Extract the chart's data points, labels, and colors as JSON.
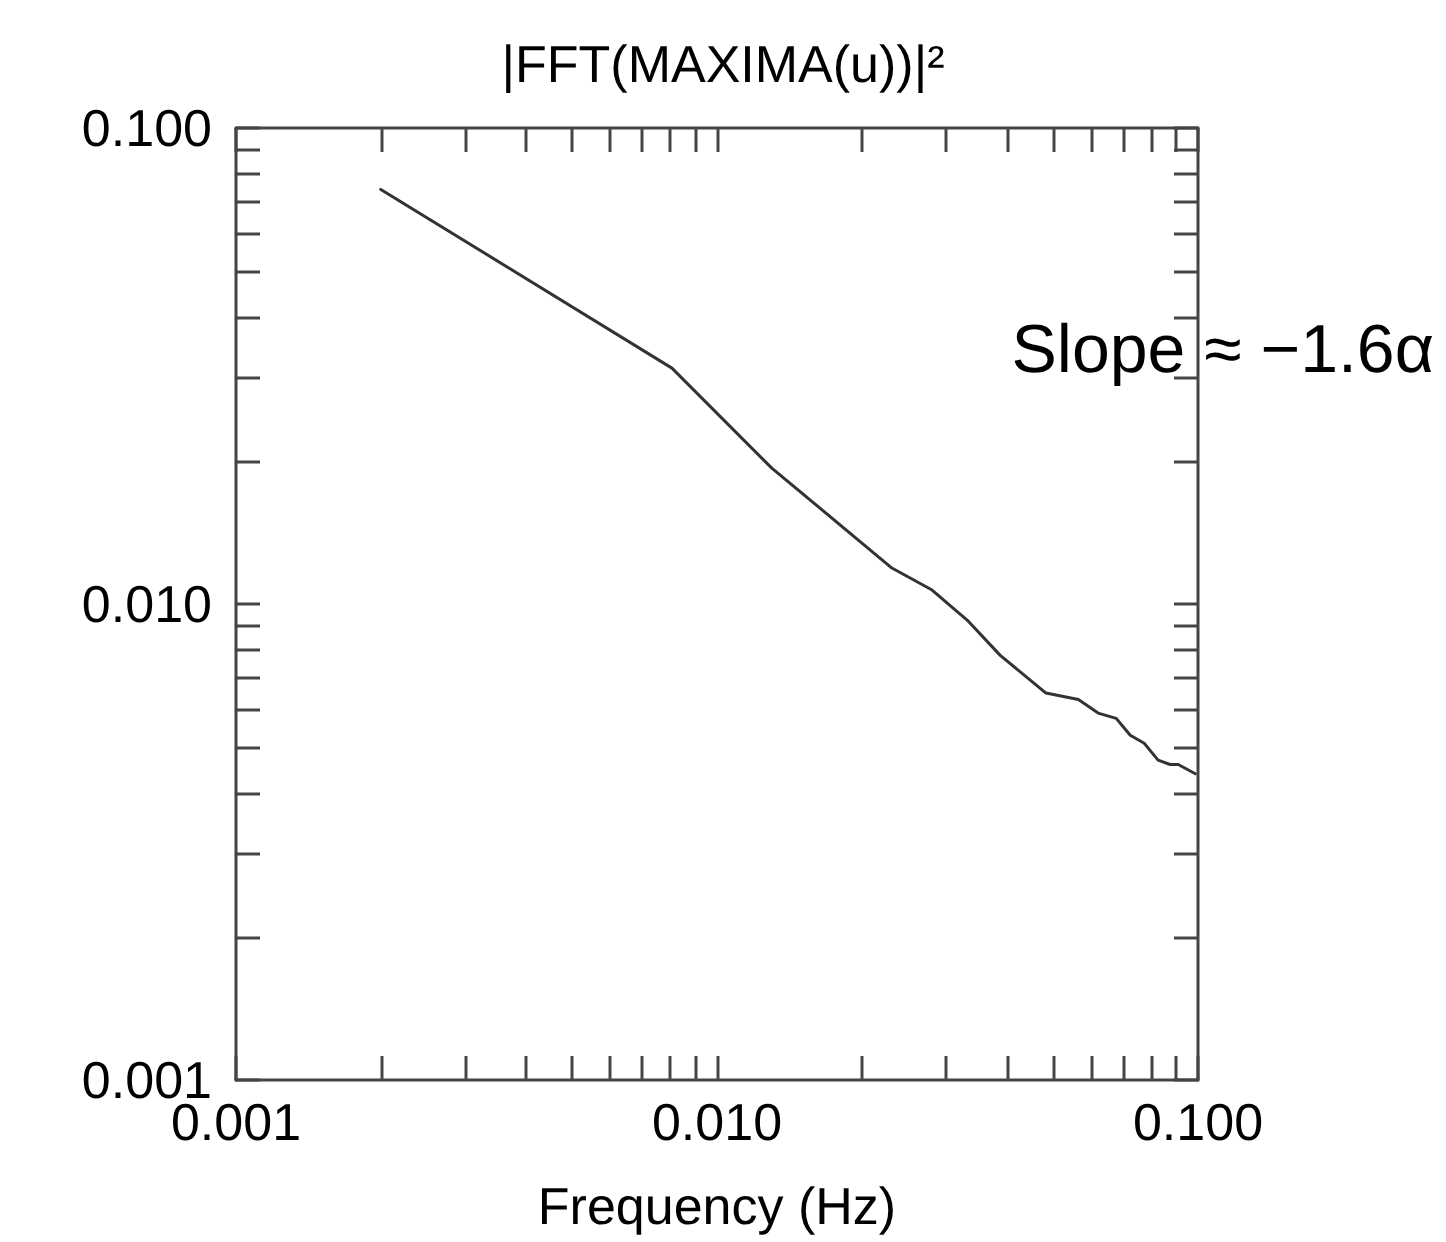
{
  "chart_data": {
    "type": "line",
    "title": "|FFT(MAXIMA(u))|²",
    "xlabel": "Frequency (Hz)",
    "annotations": [
      "Slope ≈ −1.6α"
    ],
    "series": [
      {
        "color": "#333333",
        "x": [
          0.002,
          0.00806,
          0.013,
          0.0231,
          0.028,
          0.0333,
          0.0388,
          0.0483,
          0.0564,
          0.062,
          0.0676,
          0.0723,
          0.0773,
          0.0826,
          0.0875,
          0.091,
          0.0987
        ],
        "values": [
          0.0743,
          0.0313,
          0.0193,
          0.0119,
          0.0107,
          0.0092,
          0.0078,
          0.0065,
          0.0063,
          0.0059,
          0.00575,
          0.0053,
          0.0051,
          0.0047,
          0.0046,
          0.0046,
          0.0044
        ]
      }
    ],
    "log": "xy",
    "grid": false,
    "marker": "none",
    "line_style": "solid",
    "xlim": [
      0.001,
      0.1
    ],
    "ylim": [
      0.001,
      0.1
    ],
    "xticks": [
      {
        "value": 0.001,
        "label": "0.001"
      },
      {
        "value": 0.002,
        "label": null
      },
      {
        "value": 0.003,
        "label": null
      },
      {
        "value": 0.004,
        "label": null
      },
      {
        "value": 0.005,
        "label": null
      },
      {
        "value": 0.006,
        "label": null
      },
      {
        "value": 0.007,
        "label": null
      },
      {
        "value": 0.008,
        "label": null
      },
      {
        "value": 0.009,
        "label": null
      },
      {
        "value": 0.01,
        "label": "0.010"
      },
      {
        "value": 0.02,
        "label": null
      },
      {
        "value": 0.03,
        "label": null
      },
      {
        "value": 0.04,
        "label": null
      },
      {
        "value": 0.05,
        "label": null
      },
      {
        "value": 0.06,
        "label": null
      },
      {
        "value": 0.07,
        "label": null
      },
      {
        "value": 0.08,
        "label": null
      },
      {
        "value": 0.09,
        "label": null
      },
      {
        "value": 0.1,
        "label": "0.100"
      }
    ],
    "yticks": [
      {
        "value": 0.001,
        "label": "0.001"
      },
      {
        "value": 0.002,
        "label": null
      },
      {
        "value": 0.003,
        "label": null
      },
      {
        "value": 0.004,
        "label": null
      },
      {
        "value": 0.005,
        "label": null
      },
      {
        "value": 0.006,
        "label": null
      },
      {
        "value": 0.007,
        "label": null
      },
      {
        "value": 0.008,
        "label": null
      },
      {
        "value": 0.009,
        "label": null
      },
      {
        "value": 0.01,
        "label": "0.010"
      },
      {
        "value": 0.02,
        "label": null
      },
      {
        "value": 0.03,
        "label": null
      },
      {
        "value": 0.04,
        "label": null
      },
      {
        "value": 0.05,
        "label": null
      },
      {
        "value": 0.06,
        "label": null
      },
      {
        "value": 0.07,
        "label": null
      },
      {
        "value": 0.08,
        "label": null
      },
      {
        "value": 0.09,
        "label": null
      },
      {
        "value": 0.1,
        "label": "0.100"
      }
    ]
  }
}
